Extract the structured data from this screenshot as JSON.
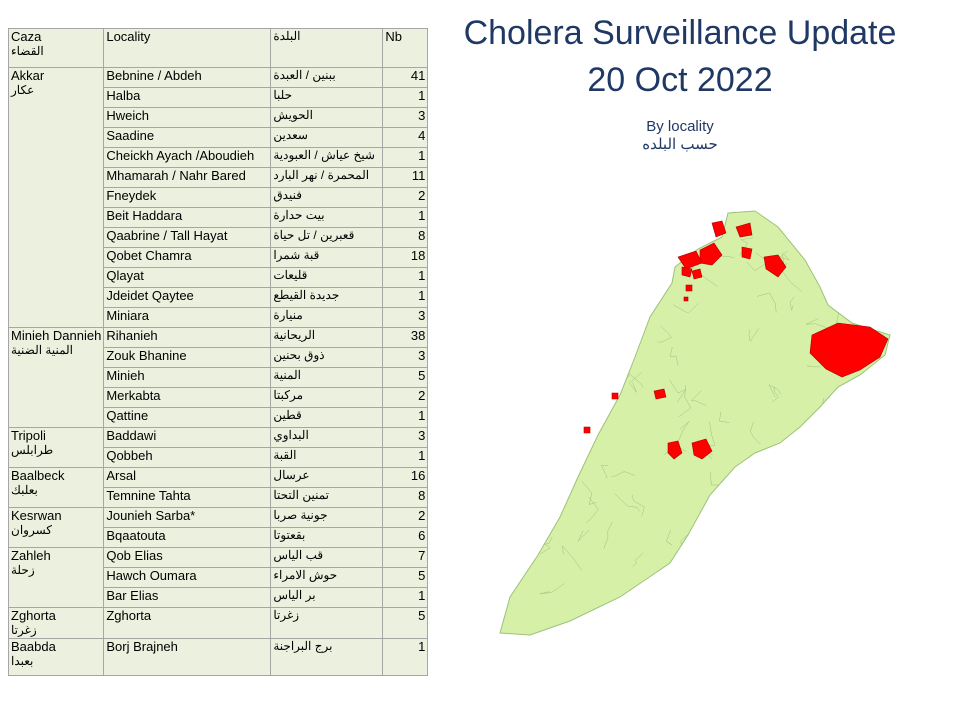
{
  "title": {
    "line1": "Cholera Surveillance Update",
    "line2": "20 Oct 2022"
  },
  "subtitle": {
    "en": "By locality",
    "ar": "حسب البلده"
  },
  "table": {
    "headers": {
      "caza_en": "Caza",
      "caza_ar": "القضاء",
      "locality": "Locality",
      "locality_ar": "البلدة",
      "nb": "Nb"
    },
    "groups": [
      {
        "caza_en": "Akkar",
        "caza_ar": "عكار",
        "rows": [
          {
            "locality": "Bebnine / Abdeh",
            "ar": "ببنين / العبدة",
            "nb": 41
          },
          {
            "locality": "Halba",
            "ar": "حلبا",
            "nb": 1
          },
          {
            "locality": "Hweich",
            "ar": "الحويش",
            "nb": 3
          },
          {
            "locality": "Saadine",
            "ar": "سعدين",
            "nb": 4
          },
          {
            "locality": "Cheickh Ayach /Aboudieh",
            "ar": "شيخ عياش / العبودية",
            "nb": 1
          },
          {
            "locality": "Mhamarah / Nahr Bared",
            "ar": "المحمرة / نهر البارد",
            "nb": 11
          },
          {
            "locality": "Fneydek",
            "ar": "فنيدق",
            "nb": 2
          },
          {
            "locality": "Beit Haddara",
            "ar": "بيت حدارة",
            "nb": 1
          },
          {
            "locality": "Qaabrine / Tall Hayat",
            "ar": "قعبرين / تل حياة",
            "nb": 8
          },
          {
            "locality": "Qobet Chamra",
            "ar": "قبة شمرا",
            "nb": 18
          },
          {
            "locality": "Qlayat",
            "ar": "قليعات",
            "nb": 1
          },
          {
            "locality": "Jdeidet Qaytee",
            "ar": "جديدة القيطع",
            "nb": 1
          },
          {
            "locality": "Miniara",
            "ar": "منيارة",
            "nb": 3
          }
        ]
      },
      {
        "caza_en": "Minieh Dannieh",
        "caza_ar": "المنية الضنية",
        "rows": [
          {
            "locality": "Rihanieh",
            "ar": "الريحانية",
            "nb": 38
          },
          {
            "locality": "Zouk Bhanine",
            "ar": "ذوق بحنين",
            "nb": 3
          },
          {
            "locality": "Minieh",
            "ar": "المنية",
            "nb": 5
          },
          {
            "locality": "Merkabta",
            "ar": "مركبتا",
            "nb": 2
          },
          {
            "locality": "Qattine",
            "ar": "قطين",
            "nb": 1
          }
        ]
      },
      {
        "caza_en": "Tripoli",
        "caza_ar": "طرابلس",
        "rows": [
          {
            "locality": "Baddawi",
            "ar": "البداوي",
            "nb": 3
          },
          {
            "locality": "Qobbeh",
            "ar": "القبة",
            "nb": 1
          }
        ]
      },
      {
        "caza_en": "Baalbeck",
        "caza_ar": "بعلبك",
        "rows": [
          {
            "locality": "Arsal",
            "ar": "عرسال",
            "nb": 16
          },
          {
            "locality": "Temnine Tahta",
            "ar": "تمنين التحتا",
            "nb": 8
          }
        ]
      },
      {
        "caza_en": "Kesrwan",
        "caza_ar": "كسروان",
        "rows": [
          {
            "locality": "Jounieh Sarba*",
            "ar": "جونية صربا",
            "nb": 2
          },
          {
            "locality": "Bqaatouta",
            "ar": "بقعتوتا",
            "nb": 6
          }
        ]
      },
      {
        "caza_en": "Zahleh",
        "caza_ar": "زحلة",
        "rows": [
          {
            "locality": "Qob Elias",
            "ar": "قب الياس",
            "nb": 7
          },
          {
            "locality": "Hawch Oumara",
            "ar": "حوش الامراء",
            "nb": 5
          },
          {
            "locality": "Bar Elias",
            "ar": "بر الياس",
            "nb": 1
          }
        ]
      },
      {
        "caza_en": "Zghorta",
        "caza_ar": "زغرتا",
        "rows": [
          {
            "locality": "Zghorta",
            "ar": "زغرتا",
            "nb": 5
          }
        ]
      },
      {
        "caza_en": "Baabda",
        "caza_ar": "بعبدا",
        "rows": [
          {
            "locality": "Borj Brajneh",
            "ar": "برج البراجنة",
            "nb": 1
          }
        ]
      }
    ]
  },
  "map": {
    "land_color": "#d6f0a8",
    "border_color": "#9cc27a",
    "case_color": "#ff0000"
  }
}
